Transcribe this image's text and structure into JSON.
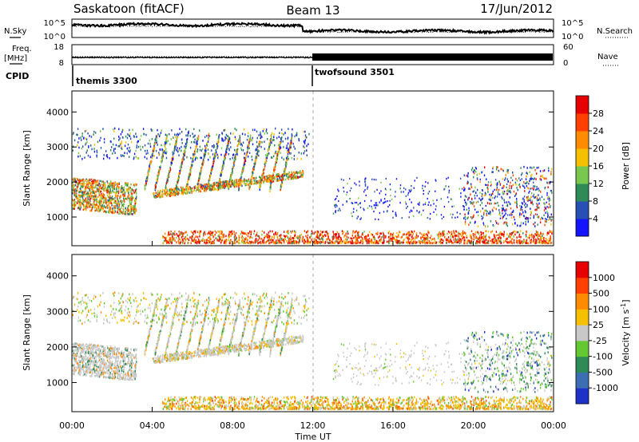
{
  "header": {
    "station": "Saskatoon (fitACF)",
    "beam": "Beam 13",
    "date": "17/Jun/2012"
  },
  "noise_panel": {
    "left_label": "N.Sky",
    "left_ticks": [
      "10^5",
      "10^0"
    ],
    "right_ticks": [
      "10^5",
      "10^0"
    ],
    "right_label": "N.Search"
  },
  "freq_panel": {
    "left_label_1": "Freq.",
    "left_label_2": "[MHz]",
    "left_ticks": [
      "18",
      "8"
    ],
    "right_ticks": [
      "60",
      "0"
    ],
    "right_label": "Nave"
  },
  "cpid": {
    "label": "CPID",
    "programs": [
      {
        "name": "themis 3300",
        "start_hour": 0
      },
      {
        "name": "twofsound 3501",
        "start_hour": 12
      }
    ]
  },
  "chart_data": [
    {
      "type": "heatmap",
      "panel": "power",
      "xlabel": "Time UT",
      "ylabel": "Slant Range [km]",
      "xlim": [
        0,
        24
      ],
      "ylim": [
        180,
        4600
      ],
      "x_ticks": [
        "00:00",
        "04:00",
        "08:00",
        "12:00",
        "16:00",
        "20:00",
        "00:00"
      ],
      "y_ticks": [
        1000,
        2000,
        3000,
        4000
      ],
      "colorbar": {
        "label": "Power [dB]",
        "ticks": [
          "4",
          "8",
          "12",
          "16",
          "20",
          "24",
          "28"
        ],
        "colors": [
          "#1414ff",
          "#2850b4",
          "#2e8b57",
          "#78c850",
          "#f5c000",
          "#ff8c00",
          "#ff4000",
          "#e60000"
        ]
      }
    },
    {
      "type": "heatmap",
      "panel": "velocity",
      "xlabel": "Time UT",
      "ylabel": "Slant Range [km]",
      "xlim": [
        0,
        24
      ],
      "ylim": [
        180,
        4600
      ],
      "x_ticks": [
        "00:00",
        "04:00",
        "08:00",
        "12:00",
        "16:00",
        "20:00",
        "00:00"
      ],
      "y_ticks": [
        1000,
        2000,
        3000,
        4000
      ],
      "colorbar": {
        "label_main": "Velocity [m s",
        "label_sup": "-1",
        "label_end": "]",
        "ticks": [
          "1000",
          "500",
          "100",
          "25",
          "-25",
          "-100",
          "-500",
          "-1000"
        ],
        "colors": [
          "#1e32c8",
          "#3c6eb4",
          "#2e8b57",
          "#64c832",
          "#c8c8c8",
          "#f5c000",
          "#ff8c00",
          "#ff4000",
          "#e60000"
        ]
      }
    }
  ]
}
